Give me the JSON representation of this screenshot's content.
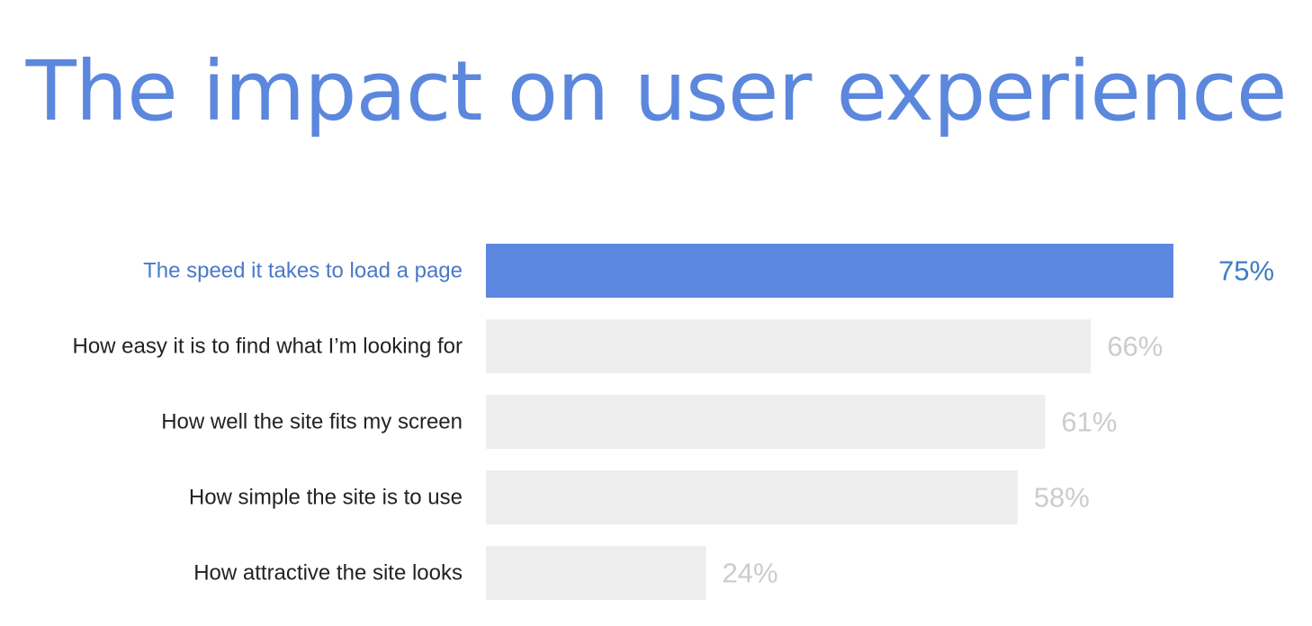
{
  "chart_data": {
    "type": "bar",
    "orientation": "horizontal",
    "title": "The impact on user experience",
    "categories": [
      "The speed it takes to load a page",
      "How easy it is to find what I’m looking for",
      "How well the site fits my screen",
      "How simple the site is to use",
      "How attractive the site looks"
    ],
    "values": [
      75,
      66,
      61,
      58,
      24
    ],
    "value_labels": [
      "75%",
      "66%",
      "61%",
      "58%",
      "24%"
    ],
    "xlim": [
      0,
      75
    ],
    "grid": false,
    "highlight_index": 0,
    "colors": {
      "title": "#5b87dd",
      "highlight_bar": "#5b87e0",
      "highlight_category": "#4a78c9",
      "highlight_value": "#3f7cc4",
      "bar": "#eeeeee",
      "category": "#222222",
      "value": "#cccccc"
    }
  }
}
